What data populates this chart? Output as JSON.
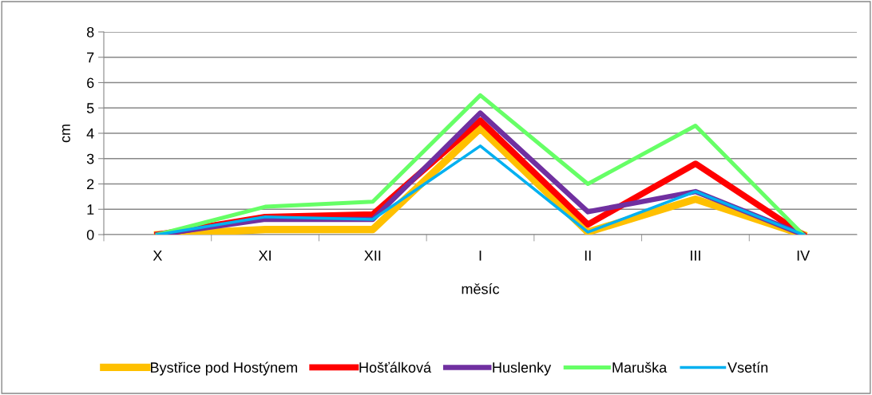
{
  "chart_data": {
    "type": "line",
    "xlabel": "měsíc",
    "ylabel": "cm",
    "categories": [
      "X",
      "XI",
      "XII",
      "I",
      "II",
      "III",
      "IV"
    ],
    "series": [
      {
        "name": "Bystřice pod Hostýnem",
        "color": "#ffc000",
        "values": [
          0,
          0.2,
          0.2,
          4.2,
          0.1,
          1.4,
          0
        ]
      },
      {
        "name": "Hošťálková",
        "color": "#ff0000",
        "values": [
          0,
          0.7,
          0.8,
          4.5,
          0.4,
          2.8,
          0
        ]
      },
      {
        "name": "Huslenky",
        "color": "#7030a0",
        "values": [
          0,
          0.6,
          0.6,
          4.8,
          0.9,
          1.7,
          0
        ]
      },
      {
        "name": "Maruška",
        "color": "#66ff66",
        "values": [
          0,
          1.1,
          1.3,
          5.5,
          2.0,
          4.3,
          0
        ]
      },
      {
        "name": "Vsetín",
        "color": "#00b0f0",
        "values": [
          0,
          0.7,
          0.6,
          3.5,
          0.1,
          1.7,
          0
        ]
      }
    ],
    "ylim": [
      0,
      8
    ],
    "yticks": [
      0,
      1,
      2,
      3,
      4,
      5,
      6,
      7,
      8
    ],
    "grid": "y",
    "legend": "bottom",
    "marker": "none",
    "line_style": "solid"
  }
}
